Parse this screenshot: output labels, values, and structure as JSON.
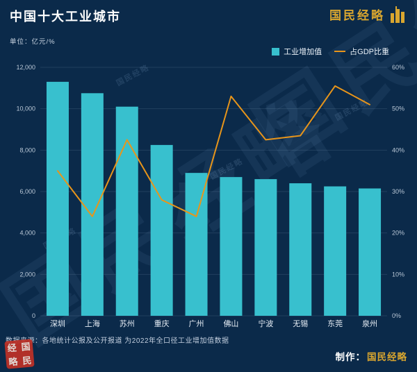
{
  "header": {
    "title": "中国十大工业城市",
    "unit_label": "单位：亿元/%",
    "logo_text": "国民经略"
  },
  "legend": {
    "bar_label": "工业增加值",
    "line_label": "占GDP比重"
  },
  "chart_data": {
    "type": "bar+line",
    "title": "中国十大工业城市",
    "categories": [
      "深圳",
      "上海",
      "苏州",
      "重庆",
      "广州",
      "佛山",
      "宁波",
      "无锡",
      "东莞",
      "泉州"
    ],
    "series": [
      {
        "name": "工业增加值",
        "type": "bar",
        "axis": "left",
        "values": [
          11300,
          10750,
          10100,
          8250,
          6900,
          6700,
          6600,
          6400,
          6250,
          6150
        ]
      },
      {
        "name": "占GDP比重",
        "type": "line",
        "axis": "right",
        "values": [
          35,
          24,
          42.5,
          28,
          24,
          53,
          42.5,
          43.5,
          55.5,
          51
        ]
      }
    ],
    "left_axis": {
      "min": 0,
      "max": 12000,
      "step": 2000,
      "tick_labels": [
        "0",
        "2,000",
        "4,000",
        "6,000",
        "8,000",
        "10,000",
        "12,000"
      ]
    },
    "right_axis": {
      "min": 0,
      "max": 60,
      "step": 10,
      "tick_labels": [
        "0%",
        "10%",
        "20%",
        "30%",
        "40%",
        "50%",
        "60%"
      ]
    },
    "grid": true,
    "legend_position": "top-right"
  },
  "footer": {
    "source": "数据来源：各地统计公报及公开报道 为2022年全口径工业增加值数据",
    "credit_label": "制作：",
    "credit_name": "国民经略"
  },
  "watermark": "国民经略",
  "stamp": [
    "经",
    "国",
    "略",
    "民"
  ],
  "colors": {
    "background": "#0b2a4a",
    "bar": "#38c0ce",
    "line": "#e8951a",
    "gold": "#d9a62f",
    "stamp": "#c03127"
  }
}
